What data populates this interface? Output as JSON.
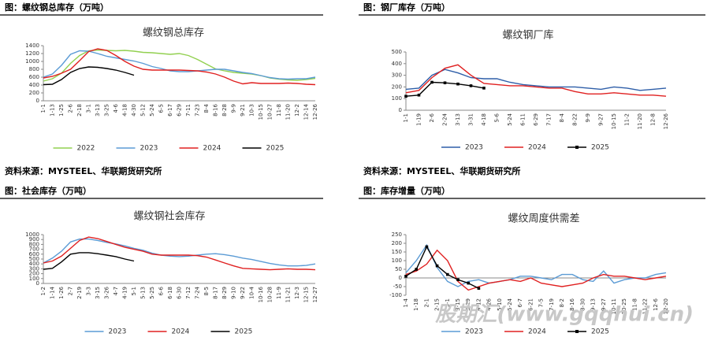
{
  "chart_data": [
    {
      "type": "line",
      "caption": "图：螺纹钢总库存（万吨）",
      "title": "螺纹钢总库存",
      "source": "资料来源：MYSTEEL、华联期货研究所",
      "categories": [
        "1-1",
        "1-13",
        "1-25",
        "2-6",
        "2-18",
        "3-1",
        "3-13",
        "3-25",
        "4-6",
        "4-18",
        "4-30",
        "5-12",
        "5-24",
        "6-5",
        "6-17",
        "6-29",
        "7-11",
        "7-23",
        "8-4",
        "8-16",
        "8-28",
        "9-9",
        "9-21",
        "10-3",
        "10-15",
        "10-27",
        "11-8",
        "11-20",
        "12-2",
        "12-14",
        "12-26"
      ],
      "ylim": [
        0,
        1400
      ],
      "yticks": [
        0,
        200,
        400,
        600,
        800,
        1000,
        1200,
        1400
      ],
      "series": [
        {
          "name": "2022",
          "color": "#92d050",
          "values": [
            500,
            560,
            700,
            950,
            1150,
            1270,
            1290,
            1280,
            1270,
            1280,
            1260,
            1230,
            1220,
            1200,
            1180,
            1200,
            1150,
            1050,
            930,
            810,
            760,
            720,
            700,
            680,
            640,
            580,
            550,
            530,
            520,
            540,
            570
          ]
        },
        {
          "name": "2023",
          "color": "#5b9bd5",
          "values": [
            600,
            680,
            900,
            1180,
            1270,
            1260,
            1200,
            1130,
            1090,
            1050,
            1010,
            950,
            870,
            820,
            760,
            740,
            740,
            760,
            780,
            800,
            800,
            760,
            720,
            690,
            640,
            590,
            560,
            550,
            560,
            560,
            600
          ]
        },
        {
          "name": "2024",
          "color": "#e02020",
          "values": [
            580,
            620,
            700,
            800,
            1020,
            1250,
            1320,
            1280,
            1150,
            1000,
            880,
            800,
            780,
            780,
            780,
            780,
            770,
            760,
            730,
            680,
            600,
            500,
            430,
            460,
            440,
            440,
            440,
            450,
            440,
            420,
            410
          ]
        },
        {
          "name": "2025",
          "color": "#000000",
          "values": [
            410,
            420,
            540,
            720,
            820,
            860,
            850,
            820,
            780,
            720,
            650,
            null,
            null,
            null,
            null,
            null,
            null,
            null,
            null,
            null,
            null,
            null,
            null,
            null,
            null,
            null,
            null,
            null,
            null,
            null,
            null
          ]
        }
      ]
    },
    {
      "type": "line",
      "caption": "图：钢厂库存（万吨）",
      "title": "螺纹钢厂库",
      "source": "资料来源：MYSTEEL、华联期货研究所",
      "categories": [
        "1-1",
        "1-19",
        "2-6",
        "2-24",
        "3-13",
        "3-31",
        "4-18",
        "5-6",
        "5-24",
        "6-11",
        "6-29",
        "7-17",
        "8-4",
        "8-22",
        "9-9",
        "9-27",
        "10-15",
        "11-2",
        "11-20",
        "12-8",
        "12-26"
      ],
      "ylim": [
        0,
        500
      ],
      "yticks": [
        0,
        100,
        200,
        300,
        400,
        500
      ],
      "series": [
        {
          "name": "2023",
          "color": "#2e5ea8",
          "values": [
            180,
            190,
            300,
            350,
            320,
            280,
            270,
            270,
            240,
            220,
            210,
            200,
            200,
            200,
            190,
            180,
            200,
            190,
            170,
            180,
            190
          ]
        },
        {
          "name": "2024",
          "color": "#e02020",
          "values": [
            150,
            170,
            280,
            360,
            390,
            300,
            230,
            220,
            210,
            210,
            200,
            190,
            190,
            160,
            140,
            140,
            150,
            140,
            130,
            130,
            120
          ]
        },
        {
          "name": "2025",
          "color": "#000000",
          "marker": "square",
          "values": [
            120,
            130,
            240,
            235,
            225,
            210,
            190,
            null,
            null,
            null,
            null,
            null,
            null,
            null,
            null,
            null,
            null,
            null,
            null,
            null,
            null
          ]
        }
      ]
    },
    {
      "type": "line",
      "caption": "图：社会库存（万吨）",
      "title": "螺纹钢社会库存",
      "categories": [
        "1-2",
        "1-14",
        "1-26",
        "2-7",
        "2-19",
        "3-3",
        "3-15",
        "3-26",
        "4-7",
        "4-19",
        "5-1",
        "5-13",
        "5-25",
        "6-6",
        "6-18",
        "6-30",
        "7-12",
        "7-24",
        "8-5",
        "8-17",
        "8-29",
        "9-10",
        "9-22",
        "10-4",
        "10-16",
        "10-28",
        "11-9",
        "11-21",
        "12-3",
        "12-15",
        "12-27"
      ],
      "ylim": [
        0,
        1000
      ],
      "yticks": [
        0,
        100,
        200,
        300,
        400,
        500,
        600,
        700,
        800,
        900,
        1000
      ],
      "series": [
        {
          "name": "2023",
          "color": "#5b9bd5",
          "values": [
            420,
            520,
            660,
            850,
            910,
            910,
            880,
            840,
            810,
            770,
            720,
            680,
            620,
            580,
            560,
            550,
            560,
            580,
            600,
            610,
            590,
            560,
            520,
            490,
            450,
            410,
            380,
            360,
            360,
            370,
            400
          ]
        },
        {
          "name": "2024",
          "color": "#e02020",
          "values": [
            420,
            460,
            560,
            720,
            880,
            950,
            920,
            860,
            800,
            740,
            700,
            660,
            600,
            580,
            580,
            580,
            580,
            570,
            540,
            480,
            420,
            360,
            310,
            300,
            290,
            280,
            290,
            300,
            290,
            290,
            280
          ]
        },
        {
          "name": "2025",
          "color": "#000000",
          "values": [
            290,
            310,
            440,
            600,
            630,
            630,
            610,
            580,
            550,
            500,
            460,
            null,
            null,
            null,
            null,
            null,
            null,
            null,
            null,
            null,
            null,
            null,
            null,
            null,
            null,
            null,
            null,
            null,
            null,
            null,
            null
          ]
        }
      ]
    },
    {
      "type": "line",
      "caption": "图：库存增量（万吨）",
      "title": "螺纹周度供需差",
      "categories": [
        "1-4",
        "1-18",
        "2-1",
        "2-15",
        "3-1",
        "3-15",
        "3-29",
        "4-12",
        "4-26",
        "5-10",
        "5-24",
        "6-7",
        "6-21",
        "7-5",
        "7-19",
        "8-2",
        "8-16",
        "8-30",
        "9-13",
        "9-27",
        "10-11",
        "10-25",
        "11-8",
        "11-22",
        "12-6",
        "12-20"
      ],
      "ylim": [
        -100,
        250
      ],
      "yticks": [
        -100,
        -50,
        0,
        50,
        100,
        150,
        200,
        250
      ],
      "series": [
        {
          "name": "2023",
          "color": "#5b9bd5",
          "values": [
            30,
            100,
            190,
            60,
            -20,
            -50,
            -20,
            -10,
            -30,
            -20,
            -10,
            10,
            10,
            0,
            -10,
            20,
            20,
            -10,
            -20,
            40,
            -30,
            -10,
            0,
            0,
            20,
            30
          ]
        },
        {
          "name": "2024",
          "color": "#e02020",
          "values": [
            20,
            40,
            80,
            160,
            100,
            -20,
            -70,
            -50,
            -30,
            -20,
            -10,
            -20,
            0,
            -30,
            -40,
            -50,
            -40,
            -30,
            0,
            20,
            10,
            10,
            0,
            -10,
            0,
            10
          ]
        },
        {
          "name": "2025",
          "color": "#000000",
          "marker": "square",
          "values": [
            10,
            50,
            180,
            70,
            20,
            -10,
            -30,
            -60,
            null,
            null,
            null,
            null,
            null,
            null,
            null,
            null,
            null,
            null,
            null,
            null,
            null,
            null,
            null,
            null,
            null,
            null
          ]
        }
      ]
    }
  ],
  "watermark": "股期汇(www.gqqhui.cn)"
}
